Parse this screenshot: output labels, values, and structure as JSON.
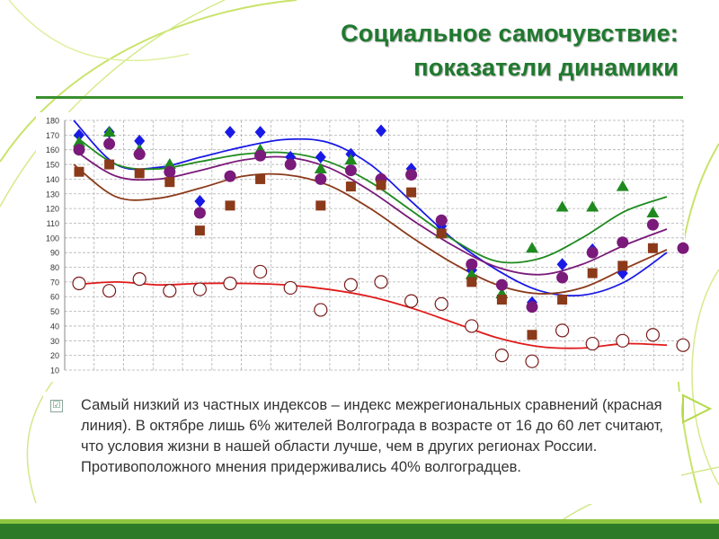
{
  "slide": {
    "title_line1": "Социальное самочувствие:",
    "title_line2": "показатели динамики",
    "caption": "Самый низкий из частных индексов – индекс межрегиональных сравнений (красная линия). В октябре лишь 6% жителей Волгограда в возрасте от 16 до 60 лет считают, что условия жизни в нашей области лучше, чем в других регионах России. Противоположного мнения придерживались 40% волгоградцев.",
    "checkbox_glyph": "☑"
  },
  "chart_data": {
    "type": "scatter",
    "ylim": [
      10,
      180
    ],
    "yticks": [
      "10",
      "20",
      "30",
      "40",
      "50",
      "60",
      "70",
      "80",
      "90",
      "100",
      "110",
      "120",
      "130",
      "140",
      "150",
      "160",
      "170",
      "180"
    ],
    "grid": true,
    "n_points": 21,
    "series": [
      {
        "color": "#1a1ae6",
        "marker": "diamond",
        "values": [
          170,
          172,
          166,
          null,
          125,
          172,
          172,
          155,
          155,
          157,
          173,
          147,
          108,
          78,
          59,
          56,
          82,
          92,
          76,
          null,
          null
        ],
        "trend": [
          180,
          150,
          148,
          155,
          162,
          167,
          165,
          150,
          124,
          98,
          78,
          64,
          61,
          70,
          90
        ]
      },
      {
        "color": "#1e8a1e",
        "marker": "triangle",
        "values": [
          165,
          172,
          160,
          150,
          null,
          null,
          160,
          null,
          147,
          153,
          null,
          null,
          103,
          75,
          62,
          93,
          121,
          121,
          135,
          117,
          null
        ],
        "trend": [
          170,
          150,
          147,
          152,
          157,
          158,
          152,
          138,
          118,
          98,
          84,
          86,
          100,
          118,
          128
        ]
      },
      {
        "color": "#7a1a7a",
        "marker": "circle",
        "values": [
          160,
          164,
          157,
          145,
          117,
          142,
          156,
          150,
          140,
          146,
          140,
          143,
          112,
          82,
          68,
          53,
          73,
          90,
          97,
          109,
          93
        ],
        "trend": [
          160,
          142,
          140,
          146,
          153,
          155,
          148,
          132,
          112,
          94,
          80,
          75,
          82,
          95,
          106
        ]
      },
      {
        "color": "#8b3a1a",
        "marker": "square",
        "values": [
          145,
          150,
          144,
          138,
          105,
          122,
          140,
          null,
          122,
          135,
          136,
          131,
          103,
          70,
          58,
          34,
          58,
          76,
          81,
          93,
          null
        ],
        "trend": [
          150,
          128,
          127,
          134,
          142,
          143,
          136,
          120,
          100,
          82,
          68,
          62,
          66,
          79,
          92
        ]
      },
      {
        "color": "#e01a1a",
        "marker": "open-circle",
        "values": [
          69,
          64,
          72,
          64,
          65,
          69,
          77,
          66,
          51,
          68,
          70,
          57,
          55,
          40,
          20,
          16,
          37,
          28,
          30,
          34,
          27
        ],
        "trend": [
          68,
          70,
          68,
          69,
          69,
          68,
          65,
          60,
          52,
          42,
          32,
          26,
          25,
          28,
          27
        ]
      }
    ]
  }
}
